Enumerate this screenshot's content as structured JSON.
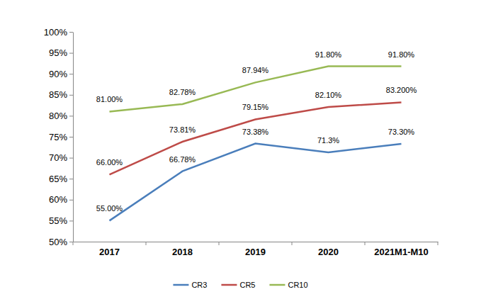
{
  "chart_data": {
    "type": "line",
    "categories": [
      "2017",
      "2018",
      "2019",
      "2020",
      "2021M1-M10"
    ],
    "series": [
      {
        "name": "CR3",
        "color": "#4a7ebb",
        "values": [
          55.0,
          66.78,
          73.38,
          71.3,
          73.3
        ],
        "value_labels": [
          "55.00%",
          "66.78%",
          "73.38%",
          "71.3%",
          "73.30%"
        ]
      },
      {
        "name": "CR5",
        "color": "#be4b48",
        "values": [
          66.0,
          73.81,
          79.15,
          82.1,
          83.2
        ],
        "value_labels": [
          "66.00%",
          "73.81%",
          "79.15%",
          "82.10%",
          "83.200%"
        ]
      },
      {
        "name": "CR10",
        "color": "#98b954",
        "values": [
          81.0,
          82.78,
          87.94,
          91.8,
          91.8
        ],
        "value_labels": [
          "81.00%",
          "82.78%",
          "87.94%",
          "91.80%",
          "91.80%"
        ]
      }
    ],
    "ylim": [
      50,
      100
    ],
    "yticks": [
      {
        "value": 50,
        "label": "50%"
      },
      {
        "value": 55,
        "label": "55%"
      },
      {
        "value": 60,
        "label": "60%"
      },
      {
        "value": 65,
        "label": "65%"
      },
      {
        "value": 70,
        "label": "70%"
      },
      {
        "value": 75,
        "label": "75%"
      },
      {
        "value": 80,
        "label": "80%"
      },
      {
        "value": 85,
        "label": "85%"
      },
      {
        "value": 90,
        "label": "90%"
      },
      {
        "value": 95,
        "label": "95%"
      },
      {
        "value": 100,
        "label": "100%"
      }
    ],
    "grid": false,
    "legend": "bottom",
    "data_labels": true
  }
}
